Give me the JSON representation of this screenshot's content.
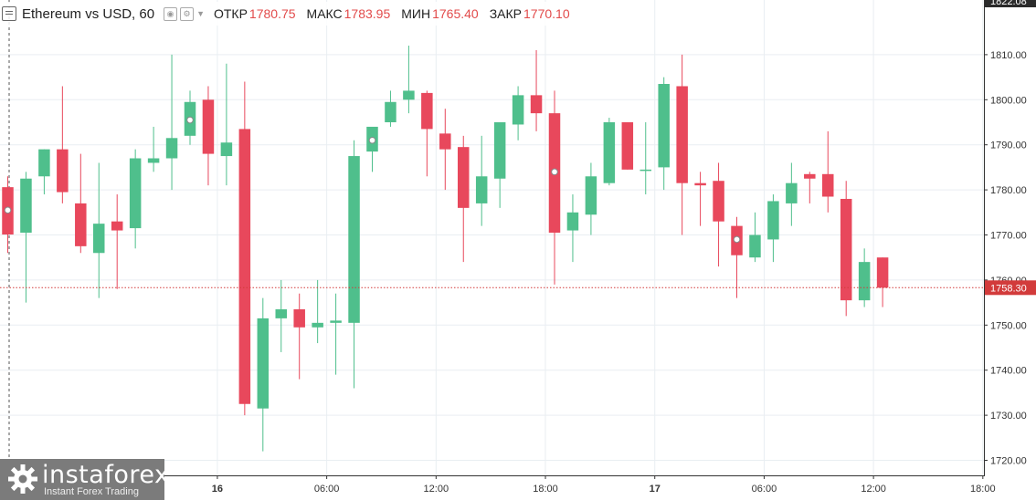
{
  "legend": {
    "title": "Ethereum vs USD, 60",
    "open_label": "ОТКР",
    "open_value": "1780.75",
    "high_label": "МАКС",
    "high_value": "1783.95",
    "low_label": "МИН",
    "low_value": "1765.40",
    "close_label": "ЗАКР",
    "close_value": "1770.10"
  },
  "colors": {
    "up": "#4fbf8c",
    "down": "#e8485c",
    "grid": "#e9eef2",
    "axis_text": "#333333",
    "price_line": "#d23b3b"
  },
  "logo": {
    "brand": "instaforex",
    "tagline": "Instant Forex Trading"
  },
  "chart_data": {
    "type": "candlestick",
    "ylim": [
      1717,
      1822
    ],
    "y_ticks": [
      1720,
      1730,
      1740,
      1750,
      1760,
      1770,
      1780,
      1790,
      1800,
      1810
    ],
    "top_label": "1822.08",
    "x_ticks": [
      {
        "label": "16",
        "index": 11.5,
        "bold": true
      },
      {
        "label": "06:00",
        "index": 17.5
      },
      {
        "label": "12:00",
        "index": 23.5
      },
      {
        "label": "18:00",
        "index": 29.5
      },
      {
        "label": "17",
        "index": 35.5,
        "bold": true
      },
      {
        "label": "06:00",
        "index": 41.5
      },
      {
        "label": "12:00",
        "index": 47.5
      },
      {
        "label": "18:00",
        "index": 53.5
      }
    ],
    "last_price": 1758.3,
    "last_price_label": "1758.30",
    "candles": [
      {
        "o": 1780.6,
        "h": 1783,
        "l": 1766,
        "c": 1770.1,
        "m": 1775.5
      },
      {
        "o": 1770.5,
        "h": 1784,
        "l": 1755,
        "c": 1782.5
      },
      {
        "o": 1783,
        "h": 1789,
        "l": 1779,
        "c": 1789
      },
      {
        "o": 1789,
        "h": 1803,
        "l": 1777,
        "c": 1779.5
      },
      {
        "o": 1777,
        "h": 1788,
        "l": 1766,
        "c": 1767.5
      },
      {
        "o": 1766,
        "h": 1786,
        "l": 1756,
        "c": 1772.5
      },
      {
        "o": 1773,
        "h": 1779,
        "l": 1758,
        "c": 1771
      },
      {
        "o": 1771.5,
        "h": 1789,
        "l": 1767,
        "c": 1787
      },
      {
        "o": 1786,
        "h": 1794,
        "l": 1784,
        "c": 1787
      },
      {
        "o": 1787,
        "h": 1810,
        "l": 1780,
        "c": 1791.5
      },
      {
        "o": 1792,
        "h": 1802,
        "l": 1790,
        "c": 1799.5,
        "m": 1795.5
      },
      {
        "o": 1800,
        "h": 1803,
        "l": 1781,
        "c": 1788
      },
      {
        "o": 1787.5,
        "h": 1808,
        "l": 1781,
        "c": 1790.5
      },
      {
        "o": 1793.5,
        "h": 1804,
        "l": 1730,
        "c": 1732.5
      },
      {
        "o": 1731.5,
        "h": 1756,
        "l": 1722,
        "c": 1751.5
      },
      {
        "o": 1751.5,
        "h": 1760,
        "l": 1744,
        "c": 1753.5
      },
      {
        "o": 1753.5,
        "h": 1757,
        "l": 1738,
        "c": 1749.5
      },
      {
        "o": 1749.5,
        "h": 1760,
        "l": 1746,
        "c": 1750.5
      },
      {
        "o": 1750.5,
        "h": 1757,
        "l": 1739,
        "c": 1751
      },
      {
        "o": 1750.5,
        "h": 1791,
        "l": 1736,
        "c": 1787.5
      },
      {
        "o": 1788.5,
        "h": 1794,
        "l": 1784,
        "c": 1794,
        "m": 1791
      },
      {
        "o": 1795,
        "h": 1802,
        "l": 1794,
        "c": 1799.5
      },
      {
        "o": 1800,
        "h": 1812,
        "l": 1797,
        "c": 1802
      },
      {
        "o": 1801.5,
        "h": 1802,
        "l": 1783,
        "c": 1793.5
      },
      {
        "o": 1792.5,
        "h": 1798,
        "l": 1780,
        "c": 1789
      },
      {
        "o": 1789.5,
        "h": 1792,
        "l": 1764,
        "c": 1776
      },
      {
        "o": 1777,
        "h": 1792,
        "l": 1772,
        "c": 1783
      },
      {
        "o": 1782.5,
        "h": 1795,
        "l": 1776,
        "c": 1795
      },
      {
        "o": 1794.5,
        "h": 1803,
        "l": 1791,
        "c": 1801
      },
      {
        "o": 1801,
        "h": 1811,
        "l": 1793,
        "c": 1797
      },
      {
        "o": 1797,
        "h": 1802,
        "l": 1759,
        "c": 1770.5,
        "m": 1784
      },
      {
        "o": 1771,
        "h": 1779,
        "l": 1764,
        "c": 1775
      },
      {
        "o": 1774.5,
        "h": 1786,
        "l": 1770,
        "c": 1783
      },
      {
        "o": 1781.5,
        "h": 1796,
        "l": 1781,
        "c": 1795
      },
      {
        "o": 1795,
        "h": 1795,
        "l": 1784.5,
        "c": 1784.5
      },
      {
        "o": 1784.5,
        "h": 1795,
        "l": 1779,
        "c": 1784.5
      },
      {
        "o": 1785,
        "h": 1805,
        "l": 1780,
        "c": 1803.5
      },
      {
        "o": 1803,
        "h": 1810,
        "l": 1770,
        "c": 1781.5
      },
      {
        "o": 1781.5,
        "h": 1784,
        "l": 1772,
        "c": 1781
      },
      {
        "o": 1782,
        "h": 1786,
        "l": 1763,
        "c": 1773
      },
      {
        "o": 1772,
        "h": 1774,
        "l": 1756,
        "c": 1765.5,
        "m": 1769
      },
      {
        "o": 1765,
        "h": 1775,
        "l": 1764,
        "c": 1770
      },
      {
        "o": 1769,
        "h": 1779,
        "l": 1764,
        "c": 1777.5
      },
      {
        "o": 1777,
        "h": 1786,
        "l": 1772,
        "c": 1781.5
      },
      {
        "o": 1783.5,
        "h": 1784,
        "l": 1777,
        "c": 1782.5
      },
      {
        "o": 1783.5,
        "h": 1793,
        "l": 1775,
        "c": 1778.5
      },
      {
        "o": 1778,
        "h": 1782,
        "l": 1752,
        "c": 1755.5
      },
      {
        "o": 1755.5,
        "h": 1767,
        "l": 1754,
        "c": 1764
      },
      {
        "o": 1765,
        "h": 1765,
        "l": 1754,
        "c": 1758.3
      }
    ]
  }
}
